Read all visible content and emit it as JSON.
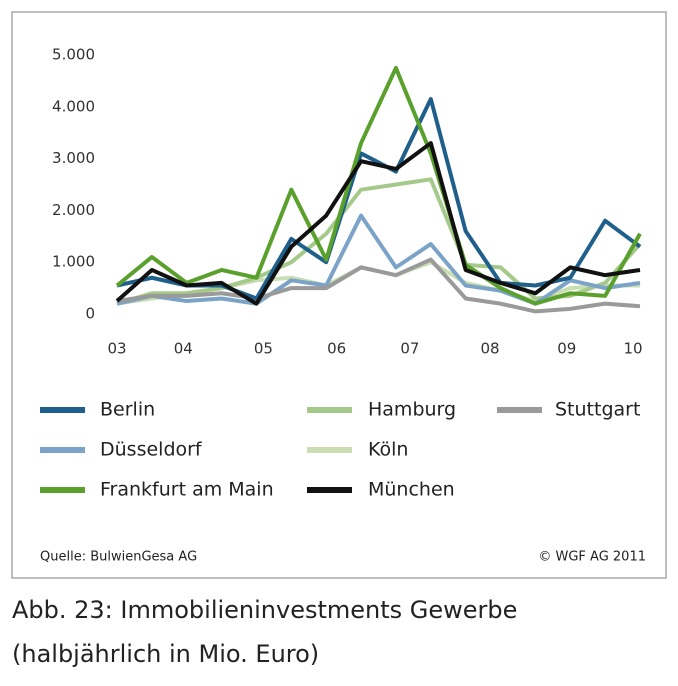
{
  "chart_data": {
    "type": "line",
    "caption": [
      "Abb. 23: Immobilieninvestments Gewerbe",
      "(halbjährlich in Mio. Euro)"
    ],
    "source": "Quelle: BulwienGesa AG",
    "copyright": "© WGF AG 2011",
    "x": [
      2003,
      2003.5,
      2004,
      2004.5,
      2005,
      2005.5,
      2006,
      2006.5,
      2007,
      2007.5,
      2008,
      2008.5,
      2009,
      2009.5,
      2010,
      2010.5
    ],
    "xlim": [
      2003,
      2010.5
    ],
    "xticks": [
      {
        "value": 2003,
        "label": "03"
      },
      {
        "value": 2003.95,
        "label": "04"
      },
      {
        "value": 2005.1,
        "label": "05"
      },
      {
        "value": 2006.15,
        "label": "06"
      },
      {
        "value": 2007.2,
        "label": "07"
      },
      {
        "value": 2008.35,
        "label": "08"
      },
      {
        "value": 2009.45,
        "label": "09"
      },
      {
        "value": 2010.4,
        "label": "10"
      }
    ],
    "ylim": [
      0,
      5000
    ],
    "yticks": [
      0,
      {
        "value": 1000,
        "label": "1.000"
      },
      {
        "value": 2000,
        "label": "2.000"
      },
      {
        "value": 3000,
        "label": "3.000"
      },
      {
        "value": 4000,
        "label": "4.000"
      },
      {
        "value": 5000,
        "label": "5.000"
      }
    ],
    "series": [
      {
        "name": "Berlin",
        "color": "#1f5f8b",
        "values": [
          550,
          700,
          550,
          550,
          300,
          1450,
          1000,
          3100,
          2750,
          4150,
          1600,
          600,
          550,
          700,
          1800,
          1300
        ]
      },
      {
        "name": "Düsseldorf",
        "color": "#7ba3c8",
        "values": [
          200,
          350,
          250,
          300,
          200,
          650,
          550,
          1900,
          900,
          1350,
          550,
          450,
          200,
          650,
          500,
          600
        ]
      },
      {
        "name": "Frankfurt am Main",
        "color": "#5aa02c",
        "values": [
          550,
          1100,
          600,
          850,
          700,
          2400,
          1050,
          3300,
          4750,
          3100,
          950,
          500,
          200,
          400,
          350,
          1550
        ]
      },
      {
        "name": "Hamburg",
        "color": "#a5c98a",
        "values": [
          200,
          400,
          400,
          500,
          700,
          1000,
          1550,
          2400,
          2500,
          2600,
          950,
          900,
          300,
          350,
          600,
          1350
        ]
      },
      {
        "name": "Köln",
        "color": "#c9dfb3",
        "values": [
          200,
          300,
          400,
          500,
          650,
          700,
          550,
          900,
          750,
          1000,
          600,
          450,
          250,
          500,
          550,
          550
        ]
      },
      {
        "name": "München",
        "color": "#111111",
        "values": [
          250,
          850,
          550,
          600,
          200,
          1300,
          1900,
          2950,
          2800,
          3300,
          850,
          600,
          400,
          900,
          750,
          850
        ]
      },
      {
        "name": "Stuttgart",
        "color": "#9a9a9a",
        "values": [
          250,
          350,
          350,
          400,
          300,
          500,
          500,
          900,
          750,
          1050,
          300,
          200,
          50,
          100,
          200,
          150
        ]
      }
    ]
  }
}
